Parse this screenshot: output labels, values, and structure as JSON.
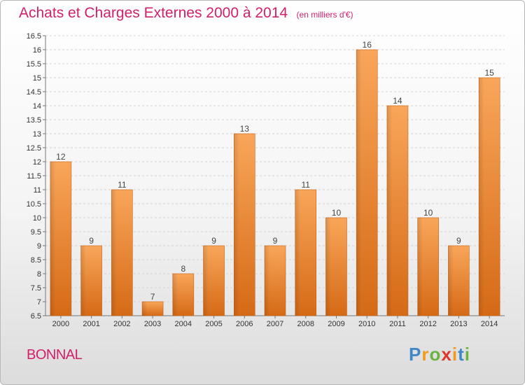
{
  "chart_data": {
    "type": "bar",
    "title": "Achats et Charges Externes 2000 à 2014",
    "unit": "(en milliers d'€)",
    "categories": [
      "2000",
      "2001",
      "2002",
      "2003",
      "2004",
      "2005",
      "2006",
      "2007",
      "2008",
      "2009",
      "2010",
      "2011",
      "2012",
      "2013",
      "2014"
    ],
    "values": [
      12,
      9,
      11,
      7,
      8,
      9,
      13,
      9,
      11,
      10,
      16,
      14,
      10,
      9,
      15
    ],
    "ylim": [
      6.5,
      16.5
    ],
    "yticks": [
      "6.5",
      "7",
      "7.5",
      "8",
      "8.5",
      "9",
      "9.5",
      "10",
      "10.5",
      "11",
      "11.5",
      "12",
      "12.5",
      "13",
      "13.5",
      "14",
      "14.5",
      "15",
      "15.5",
      "16",
      "16.5"
    ],
    "grid": true,
    "bar_color": "#f0923a"
  },
  "place": "BONNAL",
  "brand": {
    "letters": [
      "P",
      "r",
      "o",
      "x",
      "i",
      "t",
      "i"
    ],
    "colors": [
      "#3f87c6",
      "#f39a1b",
      "#6bb33e",
      "#e0342b",
      "#f39a1b",
      "#3f87c6",
      "#6bb33e"
    ]
  }
}
